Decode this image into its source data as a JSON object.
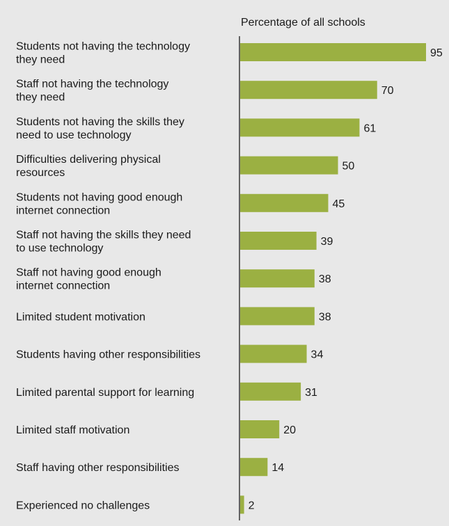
{
  "chart_data": {
    "type": "bar",
    "orientation": "horizontal",
    "title": "",
    "xlabel": "Percentage of all schools",
    "ylabel": "",
    "xlim": [
      0,
      95
    ],
    "grid": false,
    "legend": "none",
    "bar_color": "#9bb042",
    "background_color": "#e8e8e8",
    "categories": [
      [
        "Students not having the technology",
        "they need"
      ],
      [
        "Staff not having the technology",
        "they need"
      ],
      [
        "Students not having the skills they",
        "need to use technology"
      ],
      [
        "Difficulties delivering physical",
        "resources"
      ],
      [
        "Students not having good enough",
        "internet connection"
      ],
      [
        "Staff not having the skills they need",
        "to use technology"
      ],
      [
        "Staff not having good enough",
        "internet connection"
      ],
      [
        "Limited student motivation"
      ],
      [
        "Students having other responsibilities"
      ],
      [
        "Limited parental support for learning"
      ],
      [
        "Limited staff motivation"
      ],
      [
        "Staff having other responsibilities"
      ],
      [
        "Experienced no challenges"
      ]
    ],
    "values": [
      95,
      70,
      61,
      50,
      45,
      39,
      38,
      38,
      34,
      31,
      20,
      14,
      2
    ]
  }
}
